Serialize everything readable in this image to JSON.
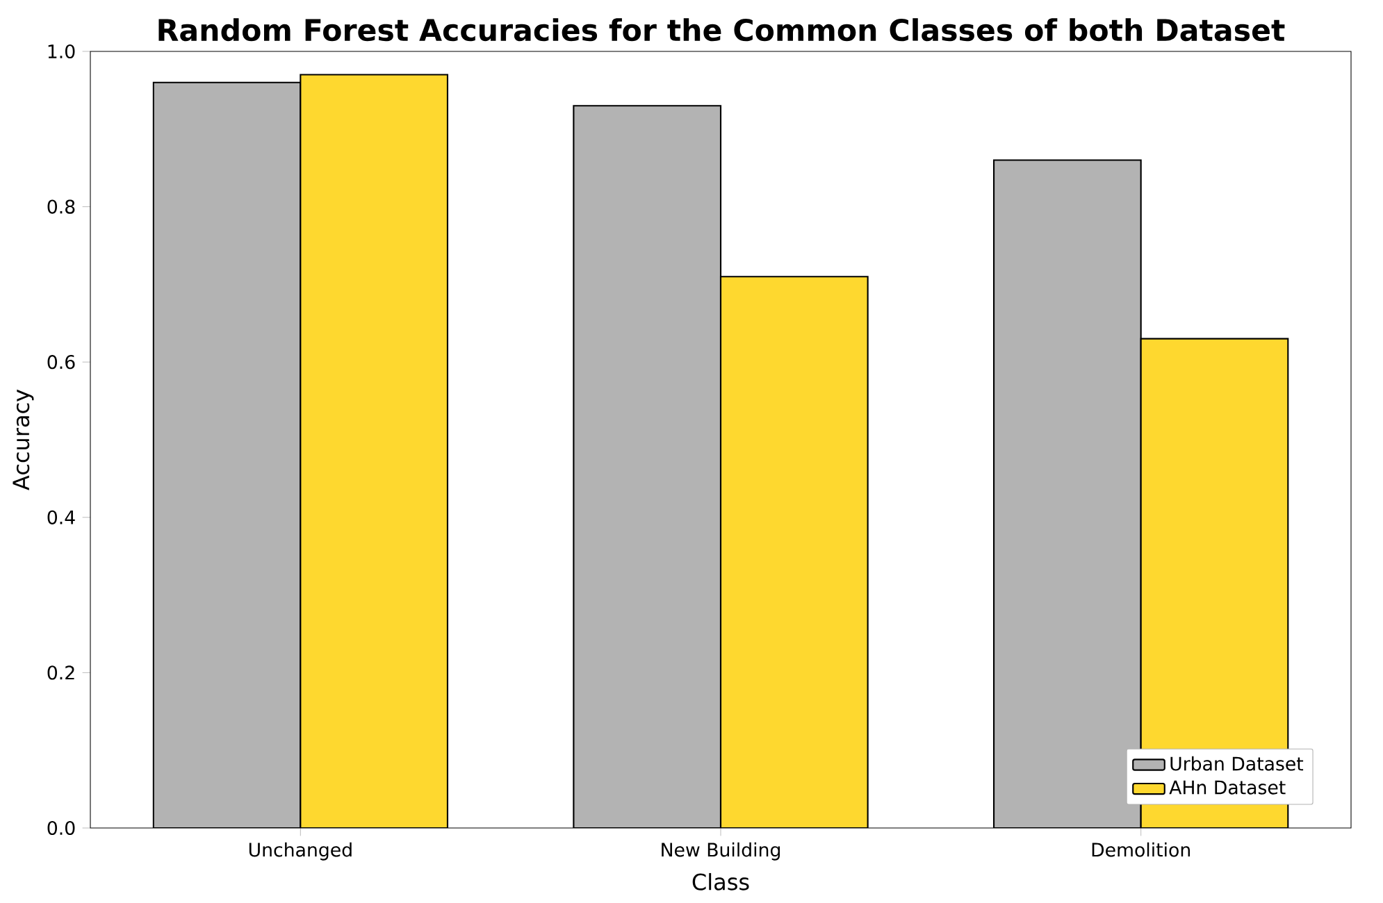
{
  "chart_data": {
    "type": "bar",
    "title": "Random Forest Accuracies for the Common Classes of both Dataset",
    "xlabel": "Class",
    "ylabel": "Accuracy",
    "categories": [
      "Unchanged",
      "New Building",
      "Demolition"
    ],
    "series": [
      {
        "name": "Urban Dataset",
        "color": "#b3b3b3",
        "values": [
          0.96,
          0.93,
          0.86
        ]
      },
      {
        "name": "AHn Dataset",
        "color": "#fed82f",
        "values": [
          0.97,
          0.71,
          0.63
        ]
      }
    ],
    "ylim": [
      0,
      1
    ],
    "yticks": [
      {
        "value": 0,
        "label": "0.0"
      },
      {
        "value": 0.2,
        "label": "0.2"
      },
      {
        "value": 0.4,
        "label": "0.4"
      },
      {
        "value": 0.6,
        "label": "0.6"
      },
      {
        "value": 0.8,
        "label": "0.8"
      },
      {
        "value": 1,
        "label": "1.0"
      }
    ],
    "legend": "bottom right"
  }
}
